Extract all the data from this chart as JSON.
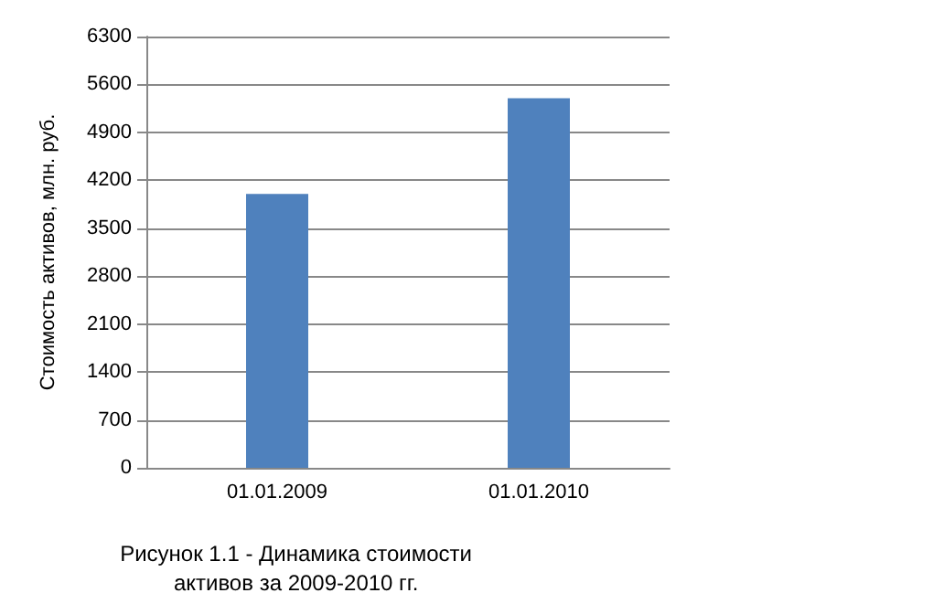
{
  "chart_data": {
    "type": "bar",
    "title": "Рисунок 1.1 - Динамика стоимости активов за 2009-2010 гг.",
    "ylabel": "Стоимость активов, млн. руб.",
    "categories": [
      "01.01.2009",
      "01.01.2010"
    ],
    "values": [
      4000,
      5400
    ],
    "color": "#4f81bd",
    "ylim": [
      0,
      6300
    ],
    "yticks": [
      0,
      700,
      1400,
      2100,
      2800,
      3500,
      4200,
      4900,
      5600,
      6300
    ],
    "grid": "y"
  }
}
